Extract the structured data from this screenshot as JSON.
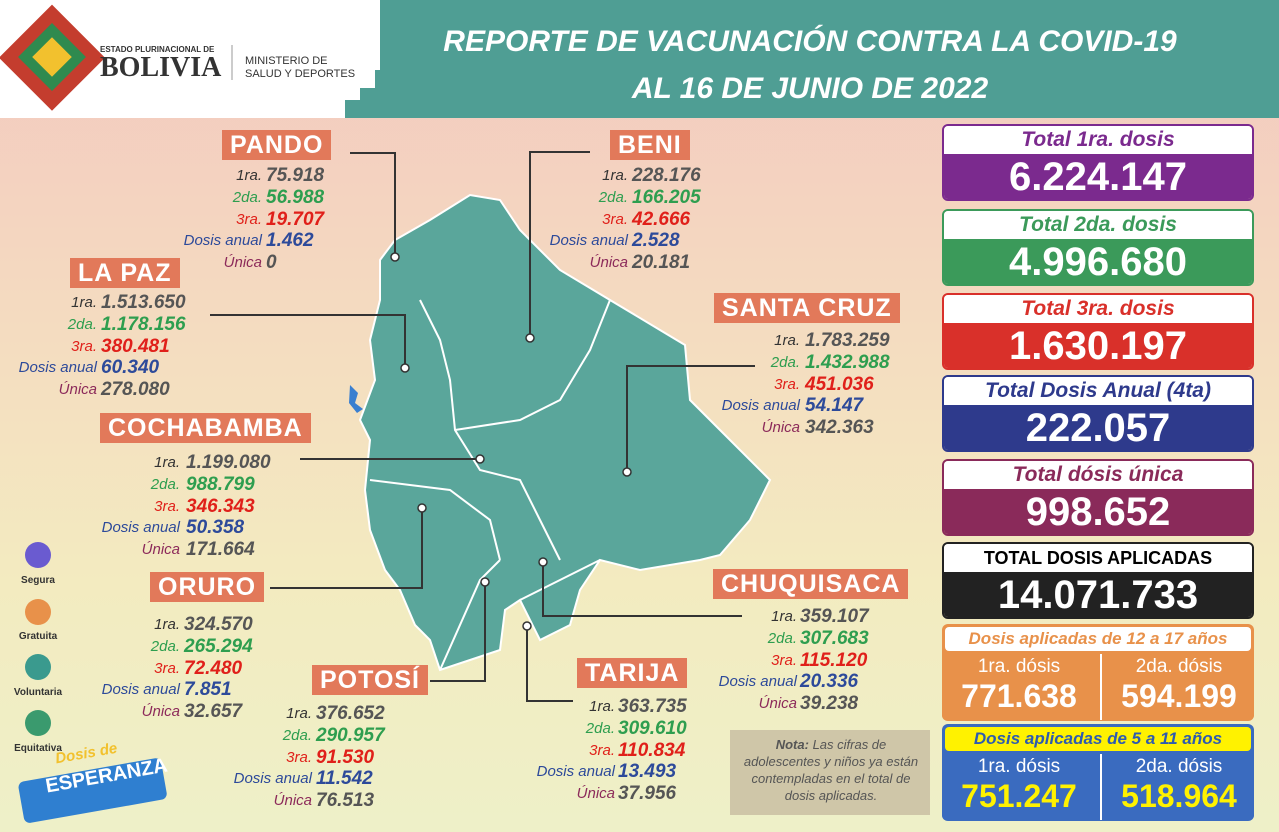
{
  "header": {
    "org_small": "ESTADO PLURINACIONAL DE",
    "org_big": "BOLIVIA",
    "ministry_1": "MINISTERIO DE",
    "ministry_2": "SALUD Y DEPORTES",
    "title_1": "REPORTE DE VACUNACIÓN CONTRA LA COVID-19",
    "title_2": "AL 16 DE JUNIO DE 2022"
  },
  "departments": [
    {
      "name": "PANDO",
      "rows": [
        {
          "label": "1ra.",
          "value": "75.918"
        },
        {
          "label": "2da.",
          "value": "56.988"
        },
        {
          "label": "3ra.",
          "value": "19.707"
        },
        {
          "label": "Dosis anual",
          "value": "1.462"
        },
        {
          "label": "Única",
          "value": "0"
        }
      ]
    },
    {
      "name": "LA PAZ",
      "rows": [
        {
          "label": "1ra.",
          "value": "1.513.650"
        },
        {
          "label": "2da.",
          "value": "1.178.156"
        },
        {
          "label": "3ra.",
          "value": "380.481"
        },
        {
          "label": "Dosis anual",
          "value": "60.340"
        },
        {
          "label": "Única",
          "value": "278.080"
        }
      ]
    },
    {
      "name": "COCHABAMBA",
      "rows": [
        {
          "label": "1ra.",
          "value": "1.199.080"
        },
        {
          "label": "2da.",
          "value": "988.799"
        },
        {
          "label": "3ra.",
          "value": "346.343"
        },
        {
          "label": "Dosis anual",
          "value": "50.358"
        },
        {
          "label": "Única",
          "value": "171.664"
        }
      ]
    },
    {
      "name": "ORURO",
      "rows": [
        {
          "label": "1ra.",
          "value": "324.570"
        },
        {
          "label": "2da.",
          "value": "265.294"
        },
        {
          "label": "3ra.",
          "value": "72.480"
        },
        {
          "label": "Dosis anual",
          "value": "7.851"
        },
        {
          "label": "Única",
          "value": "32.657"
        }
      ]
    },
    {
      "name": "POTOSÍ",
      "rows": [
        {
          "label": "1ra.",
          "value": "376.652"
        },
        {
          "label": "2da.",
          "value": "290.957"
        },
        {
          "label": "3ra.",
          "value": "91.530"
        },
        {
          "label": "Dosis anual",
          "value": "11.542"
        },
        {
          "label": "Única",
          "value": "76.513"
        }
      ]
    },
    {
      "name": "BENI",
      "rows": [
        {
          "label": "1ra.",
          "value": "228.176"
        },
        {
          "label": "2da.",
          "value": "166.205"
        },
        {
          "label": "3ra.",
          "value": "42.666"
        },
        {
          "label": "Dosis anual",
          "value": "2.528"
        },
        {
          "label": "Única",
          "value": "20.181"
        }
      ]
    },
    {
      "name": "SANTA CRUZ",
      "rows": [
        {
          "label": "1ra.",
          "value": "1.783.259"
        },
        {
          "label": "2da.",
          "value": "1.432.988"
        },
        {
          "label": "3ra.",
          "value": "451.036"
        },
        {
          "label": "Dosis anual",
          "value": "54.147"
        },
        {
          "label": "Única",
          "value": "342.363"
        }
      ]
    },
    {
      "name": "CHUQUISACA",
      "rows": [
        {
          "label": "1ra.",
          "value": "359.107"
        },
        {
          "label": "2da.",
          "value": "307.683"
        },
        {
          "label": "3ra.",
          "value": "115.120"
        },
        {
          "label": "Dosis anual",
          "value": "20.336"
        },
        {
          "label": "Única",
          "value": "39.238"
        }
      ]
    },
    {
      "name": "TARIJA",
      "rows": [
        {
          "label": "1ra.",
          "value": "363.735"
        },
        {
          "label": "2da.",
          "value": "309.610"
        },
        {
          "label": "3ra.",
          "value": "110.834"
        },
        {
          "label": "Dosis anual",
          "value": "13.493"
        },
        {
          "label": "Única",
          "value": "37.956"
        }
      ]
    }
  ],
  "totals": [
    {
      "label": "Total 1ra. dosis",
      "value": "6.224.147"
    },
    {
      "label": "Total 2da. dosis",
      "value": "4.996.680"
    },
    {
      "label": "Total 3ra. dosis",
      "value": "1.630.197"
    },
    {
      "label": "Total Dosis Anual (4ta)",
      "value": "222.057"
    },
    {
      "label": "Total dósis única",
      "value": "998.652"
    },
    {
      "label": "TOTAL DOSIS APLICADAS",
      "value": "14.071.733"
    }
  ],
  "age_groups": [
    {
      "title": "Dosis aplicadas de 12 a 17 años",
      "items": [
        {
          "label": "1ra. dósis",
          "value": "771.638"
        },
        {
          "label": "2da. dósis",
          "value": "594.199"
        }
      ]
    },
    {
      "title": "Dosis aplicadas de 5 a 11 años",
      "items": [
        {
          "label": "1ra. dósis",
          "value": "751.247"
        },
        {
          "label": "2da. dósis",
          "value": "518.964"
        }
      ]
    }
  ],
  "note": {
    "bold": "Nota:",
    "text": "Las cifras de adolescentes y niños ya están contempladas en el total de dosis aplicadas."
  },
  "badges": [
    "Segura",
    "Gratuita",
    "Voluntaria",
    "Equitativa"
  ],
  "campaign": {
    "line_1": "Dosis de",
    "line_2": "ESPERANZA"
  }
}
